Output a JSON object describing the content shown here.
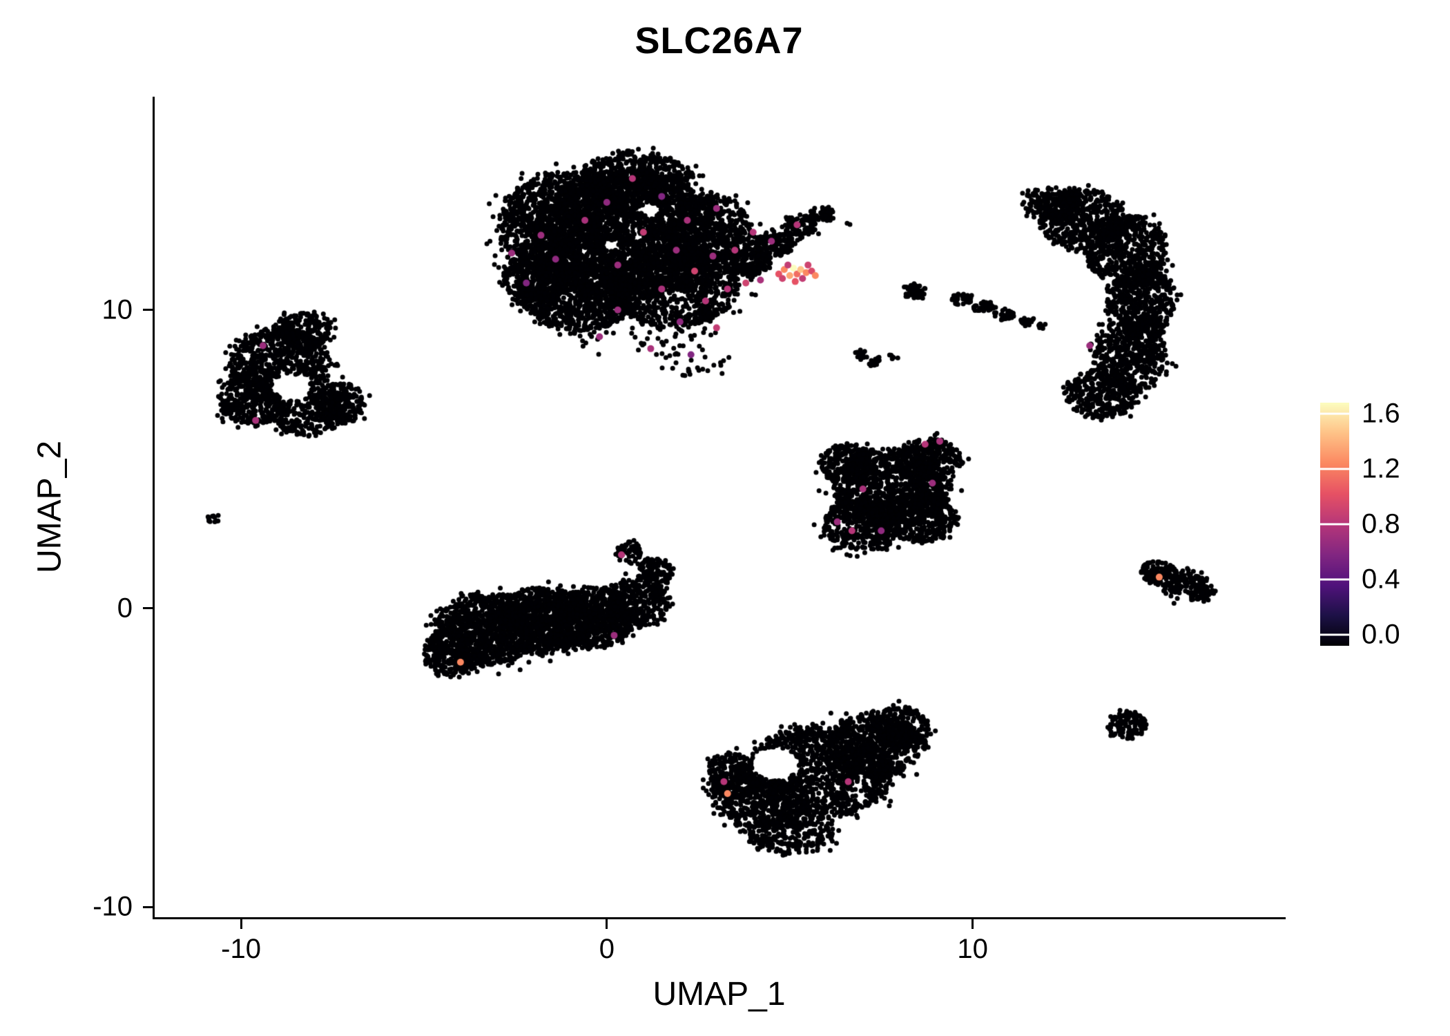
{
  "chart_data": {
    "type": "scatter",
    "subtype": "umap-feature-plot",
    "title": "SLC26A7",
    "xlabel": "UMAP_1",
    "ylabel": "UMAP_2",
    "xlim": [
      -12.36,
      18.5
    ],
    "ylim": [
      -10.34,
      17.14
    ],
    "xticks": [
      {
        "label": "-10",
        "value": -10
      },
      {
        "label": "0",
        "value": 0
      },
      {
        "label": "10",
        "value": 10
      }
    ],
    "yticks": [
      {
        "label": "10",
        "value": 10
      },
      {
        "label": "0",
        "value": 0
      },
      {
        "label": "-10",
        "value": -10
      }
    ],
    "background": "#FFFFFF",
    "point_color_zero": "#000004",
    "value_max": 1.6,
    "colorbar": {
      "ticks": [
        {
          "label": "1.6",
          "value": 1.6
        },
        {
          "label": "1.2",
          "value": 1.2
        },
        {
          "label": "0.8",
          "value": 0.8
        },
        {
          "label": "0.4",
          "value": 0.4
        },
        {
          "label": "0.0",
          "value": 0.0
        }
      ],
      "colormap": "magma",
      "colormap_stops": [
        "#000004",
        "#1D1147",
        "#51127C",
        "#822681",
        "#B63679",
        "#E65164",
        "#FB8861",
        "#FEC287",
        "#FCFDBF"
      ]
    },
    "clusters": [
      {
        "name": "central-upper-large",
        "blobs": [
          [
            0.5,
            12.5,
            2.5,
            2.2,
            2600
          ],
          [
            -1.2,
            12.8,
            1.8,
            1.8,
            1200
          ],
          [
            1.8,
            10.8,
            1.8,
            1.4,
            1000
          ],
          [
            -0.8,
            10.4,
            1.5,
            1.1,
            700
          ],
          [
            0.8,
            14.3,
            1.6,
            1.0,
            600
          ],
          [
            2.8,
            12.5,
            1.2,
            1.4,
            600
          ],
          [
            -2.0,
            11.0,
            0.9,
            0.9,
            300
          ],
          [
            3.9,
            11.6,
            0.6,
            0.45,
            180
          ],
          [
            4.6,
            12.2,
            0.55,
            0.4,
            140
          ],
          [
            5.3,
            12.8,
            0.5,
            0.35,
            100
          ],
          [
            5.9,
            13.2,
            0.35,
            0.25,
            50
          ],
          [
            6.6,
            12.9,
            0.06,
            0.06,
            2
          ],
          [
            1.0,
            9.2,
            2.0,
            0.8,
            70
          ],
          [
            2.5,
            8.3,
            1.0,
            0.5,
            25
          ]
        ],
        "holes": [
          [
            1.2,
            13.35,
            0.28,
            0.22
          ],
          [
            0.1,
            12.15,
            0.2,
            0.18
          ]
        ]
      },
      {
        "name": "left",
        "blobs": [
          [
            -8.9,
            8.2,
            1.4,
            1.2,
            700
          ],
          [
            -9.7,
            7.0,
            0.9,
            0.9,
            350
          ],
          [
            -8.2,
            6.6,
            1.0,
            0.8,
            330
          ],
          [
            -7.3,
            6.9,
            0.7,
            0.7,
            200
          ],
          [
            -8.3,
            9.3,
            0.8,
            0.6,
            220
          ]
        ],
        "holes": [
          [
            -8.6,
            7.4,
            0.5,
            0.45
          ]
        ]
      },
      {
        "name": "left-tiny",
        "blobs": [
          [
            -10.75,
            3.0,
            0.16,
            0.2,
            12
          ]
        ],
        "holes": []
      },
      {
        "name": "lower-left",
        "blobs": [
          [
            -3.3,
            -0.7,
            1.4,
            1.2,
            900
          ],
          [
            -1.8,
            -0.4,
            1.5,
            1.1,
            950
          ],
          [
            -0.4,
            -0.3,
            1.2,
            1.0,
            650
          ],
          [
            0.8,
            0.2,
            0.9,
            0.8,
            330
          ],
          [
            -4.2,
            -1.5,
            0.8,
            0.8,
            280
          ],
          [
            1.3,
            1.2,
            0.5,
            0.5,
            120
          ],
          [
            0.6,
            1.9,
            0.35,
            0.35,
            60
          ]
        ],
        "holes": []
      },
      {
        "name": "middle-right",
        "blobs": [
          [
            7.8,
            4.0,
            1.6,
            1.3,
            1050
          ],
          [
            7.0,
            2.8,
            1.1,
            0.9,
            400
          ],
          [
            8.6,
            3.0,
            1.0,
            0.8,
            330
          ],
          [
            8.8,
            5.0,
            0.9,
            0.7,
            280
          ],
          [
            6.6,
            4.9,
            0.8,
            0.6,
            240
          ]
        ],
        "holes": []
      },
      {
        "name": "bottom-center",
        "blobs": [
          [
            5.8,
            -5.5,
            2.0,
            1.6,
            1250
          ],
          [
            7.3,
            -4.6,
            1.3,
            1.1,
            550
          ],
          [
            4.2,
            -6.3,
            1.3,
            1.1,
            480
          ],
          [
            8.0,
            -4.0,
            0.8,
            0.7,
            240
          ],
          [
            5.0,
            -7.6,
            1.2,
            0.6,
            240
          ],
          [
            3.5,
            -5.6,
            0.8,
            0.8,
            240
          ]
        ],
        "holes": [
          [
            4.6,
            -5.2,
            0.65,
            0.55
          ]
        ]
      },
      {
        "name": "right-crescent",
        "blobs": [
          [
            13.0,
            13.0,
            1.2,
            1.0,
            500
          ],
          [
            14.2,
            12.0,
            1.1,
            1.2,
            580
          ],
          [
            14.6,
            10.3,
            0.9,
            1.2,
            500
          ],
          [
            14.3,
            8.5,
            1.0,
            1.2,
            500
          ],
          [
            13.5,
            7.2,
            1.0,
            0.8,
            330
          ],
          [
            12.2,
            13.6,
            0.8,
            0.5,
            200
          ]
        ],
        "holes": [
          [
            12.3,
            10.1,
            1.05,
            1.6
          ]
        ]
      },
      {
        "name": "small-mid-fragments",
        "blobs": [
          [
            8.4,
            10.6,
            0.3,
            0.28,
            55
          ],
          [
            9.7,
            10.35,
            0.28,
            0.2,
            40
          ],
          [
            10.3,
            10.1,
            0.3,
            0.18,
            45
          ],
          [
            10.9,
            9.85,
            0.28,
            0.16,
            35
          ],
          [
            11.5,
            9.6,
            0.2,
            0.14,
            20
          ],
          [
            11.9,
            9.5,
            0.12,
            0.1,
            8
          ],
          [
            6.9,
            8.5,
            0.2,
            0.15,
            15
          ],
          [
            7.3,
            8.3,
            0.22,
            0.16,
            18
          ],
          [
            7.8,
            8.4,
            0.12,
            0.1,
            6
          ]
        ],
        "holes": []
      },
      {
        "name": "right-small",
        "blobs": [
          [
            15.1,
            1.2,
            0.5,
            0.42,
            110
          ],
          [
            15.8,
            0.8,
            0.6,
            0.5,
            140
          ],
          [
            16.3,
            0.55,
            0.3,
            0.25,
            45
          ]
        ],
        "holes": []
      },
      {
        "name": "bottom-right-small",
        "blobs": [
          [
            14.2,
            -3.9,
            0.52,
            0.5,
            120
          ]
        ],
        "holes": []
      }
    ],
    "expression_points": [
      [
        0.7,
        14.4,
        0.8
      ],
      [
        3.0,
        13.4,
        0.7
      ],
      [
        -0.6,
        13.0,
        0.75
      ],
      [
        1.0,
        12.6,
        0.85
      ],
      [
        1.9,
        12.0,
        0.7
      ],
      [
        3.5,
        12.0,
        0.8
      ],
      [
        -1.4,
        11.7,
        0.65
      ],
      [
        0.3,
        11.5,
        0.7
      ],
      [
        2.4,
        11.3,
        0.9
      ],
      [
        -2.2,
        10.9,
        0.6
      ],
      [
        1.5,
        10.7,
        0.75
      ],
      [
        2.7,
        10.3,
        0.8
      ],
      [
        0.3,
        10.0,
        0.7
      ],
      [
        2.0,
        9.6,
        0.65
      ],
      [
        3.0,
        9.4,
        0.85
      ],
      [
        -0.2,
        9.1,
        0.7
      ],
      [
        1.2,
        8.7,
        0.75
      ],
      [
        2.3,
        8.5,
        0.6
      ],
      [
        3.3,
        10.7,
        0.8
      ],
      [
        4.2,
        11.0,
        0.75
      ],
      [
        -1.8,
        12.5,
        0.7
      ],
      [
        0.0,
        13.6,
        0.65
      ],
      [
        2.2,
        13.0,
        0.75
      ],
      [
        4.0,
        12.6,
        0.8
      ],
      [
        1.5,
        13.8,
        0.6
      ],
      [
        -2.6,
        11.9,
        0.7
      ],
      [
        3.8,
        10.9,
        0.9
      ],
      [
        2.9,
        11.8,
        0.7
      ],
      [
        4.5,
        12.3,
        0.7
      ],
      [
        5.2,
        12.85,
        0.8
      ],
      [
        4.7,
        11.2,
        1.0
      ],
      [
        4.85,
        11.35,
        1.2
      ],
      [
        5.0,
        11.15,
        1.3
      ],
      [
        5.1,
        11.4,
        1.6
      ],
      [
        5.2,
        11.2,
        1.1
      ],
      [
        5.3,
        11.35,
        1.4
      ],
      [
        5.45,
        11.25,
        1.2
      ],
      [
        5.6,
        11.3,
        0.95
      ],
      [
        4.8,
        11.05,
        0.9
      ],
      [
        5.15,
        10.95,
        1.0
      ],
      [
        5.35,
        11.05,
        0.85
      ],
      [
        4.95,
        11.5,
        0.85
      ],
      [
        5.5,
        11.5,
        0.9
      ],
      [
        5.7,
        11.15,
        1.2
      ],
      [
        -9.4,
        8.8,
        0.7
      ],
      [
        -9.6,
        6.3,
        0.75
      ],
      [
        -4.0,
        -1.8,
        1.2
      ],
      [
        0.4,
        1.8,
        0.8
      ],
      [
        0.2,
        -0.9,
        0.7
      ],
      [
        8.7,
        5.5,
        0.8
      ],
      [
        7.0,
        4.0,
        0.75
      ],
      [
        6.3,
        2.9,
        0.7
      ],
      [
        6.7,
        2.6,
        0.8
      ],
      [
        7.5,
        2.6,
        0.65
      ],
      [
        8.9,
        4.2,
        0.7
      ],
      [
        9.1,
        5.6,
        0.75
      ],
      [
        3.2,
        -5.8,
        0.8
      ],
      [
        3.3,
        -6.2,
        1.2
      ],
      [
        6.6,
        -5.8,
        0.8
      ],
      [
        13.2,
        8.8,
        0.7
      ],
      [
        15.1,
        1.05,
        1.2
      ]
    ]
  }
}
